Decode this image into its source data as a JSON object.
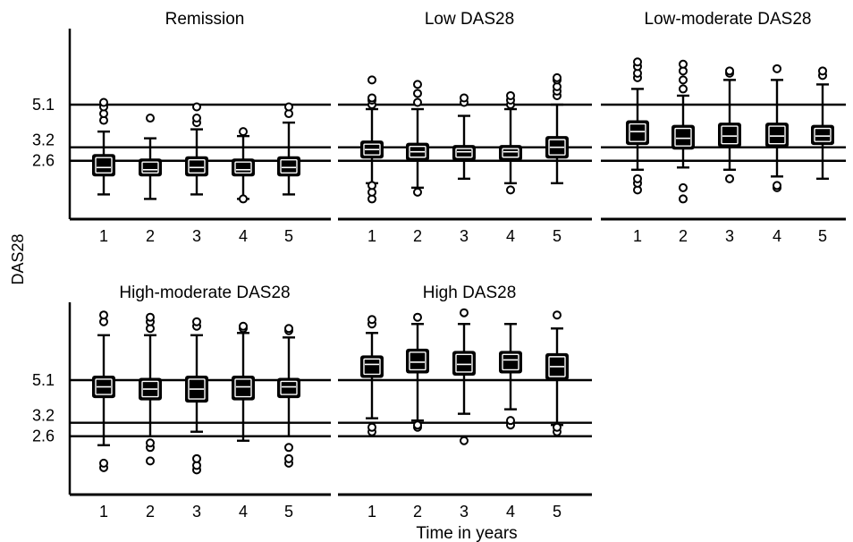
{
  "figure": {
    "ylabel": "DAS28",
    "xlabel": "Time in years",
    "colors": {
      "ink": "#000000",
      "box_inner": "#ffffff"
    }
  },
  "chart_data": [
    {
      "type": "box",
      "title": "Remission",
      "categories": [
        "1",
        "2",
        "3",
        "4",
        "5"
      ],
      "reference_lines": [
        5.1,
        3.2,
        2.6
      ],
      "reference_labels": [
        "5.1",
        "3.2",
        "2.6"
      ],
      "ylim": [
        0,
        9
      ],
      "boxes": [
        {
          "whisker_low": 1.1,
          "q1": 1.9,
          "median": 2.3,
          "q3": 2.9,
          "whisker_high": 3.9,
          "outliers": [
            4.4,
            4.7,
            5.0,
            5.2
          ]
        },
        {
          "whisker_low": 0.9,
          "q1": 1.9,
          "median": 2.2,
          "q3": 2.7,
          "whisker_high": 3.6,
          "outliers": [
            4.5
          ]
        },
        {
          "whisker_low": 1.1,
          "q1": 1.9,
          "median": 2.3,
          "q3": 2.8,
          "whisker_high": 4.0,
          "outliers": [
            4.3,
            4.5,
            5.0
          ]
        },
        {
          "whisker_low": 0.9,
          "q1": 1.9,
          "median": 2.2,
          "q3": 2.7,
          "whisker_high": 3.7,
          "outliers": [
            0.9,
            3.9
          ]
        },
        {
          "whisker_low": 1.1,
          "q1": 1.9,
          "median": 2.3,
          "q3": 2.8,
          "whisker_high": 4.3,
          "outliers": [
            4.7,
            5.0
          ]
        }
      ]
    },
    {
      "type": "box",
      "title": "Low DAS28",
      "categories": [
        "1",
        "2",
        "3",
        "4",
        "5"
      ],
      "reference_lines": [
        5.1,
        3.2,
        2.6
      ],
      "reference_labels": [],
      "ylim": [
        0,
        9
      ],
      "boxes": [
        {
          "whisker_low": 1.6,
          "q1": 2.7,
          "median": 3.1,
          "q3": 3.5,
          "whisker_high": 4.9,
          "outliers": [
            0.9,
            1.2,
            1.5,
            5.1,
            5.3,
            5.4,
            6.2
          ]
        },
        {
          "whisker_low": 1.4,
          "q1": 2.6,
          "median": 3.0,
          "q3": 3.4,
          "whisker_high": 4.9,
          "outliers": [
            1.2,
            5.2,
            5.6,
            6.0
          ]
        },
        {
          "whisker_low": 1.8,
          "q1": 2.6,
          "median": 3.0,
          "q3": 3.3,
          "whisker_high": 4.6,
          "outliers": [
            5.2,
            5.4
          ]
        },
        {
          "whisker_low": 1.6,
          "q1": 2.6,
          "median": 3.0,
          "q3": 3.3,
          "whisker_high": 4.9,
          "outliers": [
            1.3,
            5.1,
            5.3,
            5.5
          ]
        },
        {
          "whisker_low": 1.6,
          "q1": 2.7,
          "median": 3.2,
          "q3": 3.7,
          "whisker_high": 5.1,
          "outliers": [
            5.5,
            5.7,
            5.9,
            6.2,
            6.3
          ]
        }
      ]
    },
    {
      "type": "box",
      "title": "Low-moderate DAS28",
      "categories": [
        "1",
        "2",
        "3",
        "4",
        "5"
      ],
      "reference_lines": [
        5.1,
        3.2,
        2.6
      ],
      "reference_labels": [],
      "ylim": [
        0,
        9
      ],
      "boxes": [
        {
          "whisker_low": 2.2,
          "q1": 3.3,
          "median": 3.9,
          "q3": 4.4,
          "whisker_high": 5.8,
          "outliers": [
            1.3,
            1.6,
            1.8,
            6.3,
            6.5,
            6.8,
            7.0
          ]
        },
        {
          "whisker_low": 2.3,
          "q1": 3.1,
          "median": 3.6,
          "q3": 4.2,
          "whisker_high": 5.5,
          "outliers": [
            0.9,
            1.4,
            5.8,
            6.2,
            6.6,
            6.9
          ]
        },
        {
          "whisker_low": 2.2,
          "q1": 3.2,
          "median": 3.7,
          "q3": 4.3,
          "whisker_high": 6.2,
          "outliers": [
            1.8,
            6.5,
            6.6
          ]
        },
        {
          "whisker_low": 1.9,
          "q1": 3.2,
          "median": 3.7,
          "q3": 4.3,
          "whisker_high": 6.2,
          "outliers": [
            1.4,
            1.5,
            6.7
          ]
        },
        {
          "whisker_low": 1.8,
          "q1": 3.3,
          "median": 3.7,
          "q3": 4.2,
          "whisker_high": 6.0,
          "outliers": [
            6.4,
            6.6
          ]
        }
      ]
    },
    {
      "type": "box",
      "title": "High-moderate DAS28",
      "categories": [
        "1",
        "2",
        "3",
        "4",
        "5"
      ],
      "reference_lines": [
        5.1,
        3.2,
        2.6
      ],
      "reference_labels": [
        "5.1",
        "3.2",
        "2.6"
      ],
      "ylim": [
        0,
        9
      ],
      "boxes": [
        {
          "whisker_low": 2.2,
          "q1": 4.3,
          "median": 4.8,
          "q3": 5.3,
          "whisker_high": 7.1,
          "outliers": [
            1.2,
            1.4,
            7.7,
            8.0
          ]
        },
        {
          "whisker_low": 2.6,
          "q1": 4.2,
          "median": 4.7,
          "q3": 5.2,
          "whisker_high": 7.1,
          "outliers": [
            1.5,
            2.1,
            2.3,
            7.4,
            7.7,
            7.9
          ]
        },
        {
          "whisker_low": 2.8,
          "q1": 4.1,
          "median": 4.7,
          "q3": 5.3,
          "whisker_high": 7.1,
          "outliers": [
            1.1,
            1.3,
            1.6,
            7.5,
            7.7
          ]
        },
        {
          "whisker_low": 2.4,
          "q1": 4.2,
          "median": 4.8,
          "q3": 5.3,
          "whisker_high": 7.2,
          "outliers": [
            7.4,
            7.5
          ]
        },
        {
          "whisker_low": 2.6,
          "q1": 4.3,
          "median": 4.8,
          "q3": 5.2,
          "whisker_high": 7.0,
          "outliers": [
            1.4,
            1.6,
            2.1,
            7.3,
            7.4
          ]
        }
      ]
    },
    {
      "type": "box",
      "title": "High DAS28",
      "categories": [
        "1",
        "2",
        "3",
        "4",
        "5"
      ],
      "reference_lines": [
        5.1,
        3.2,
        2.6
      ],
      "reference_labels": [],
      "ylim": [
        0,
        9
      ],
      "boxes": [
        {
          "whisker_low": 3.4,
          "q1": 5.2,
          "median": 5.8,
          "q3": 6.2,
          "whisker_high": 7.2,
          "outliers": [
            2.8,
            3.0,
            7.6,
            7.8
          ]
        },
        {
          "whisker_low": 3.3,
          "q1": 5.4,
          "median": 5.9,
          "q3": 6.5,
          "whisker_high": 7.6,
          "outliers": [
            3.0,
            3.1,
            7.9
          ]
        },
        {
          "whisker_low": 3.6,
          "q1": 5.3,
          "median": 5.8,
          "q3": 6.4,
          "whisker_high": 7.6,
          "outliers": [
            2.4,
            8.1
          ]
        },
        {
          "whisker_low": 3.8,
          "q1": 5.4,
          "median": 6.0,
          "q3": 6.4,
          "whisker_high": 7.6,
          "outliers": [
            3.1,
            3.3
          ]
        },
        {
          "whisker_low": 3.1,
          "q1": 5.1,
          "median": 5.7,
          "q3": 6.3,
          "whisker_high": 7.4,
          "outliers": [
            2.8,
            3.0,
            8.0
          ]
        }
      ]
    }
  ]
}
